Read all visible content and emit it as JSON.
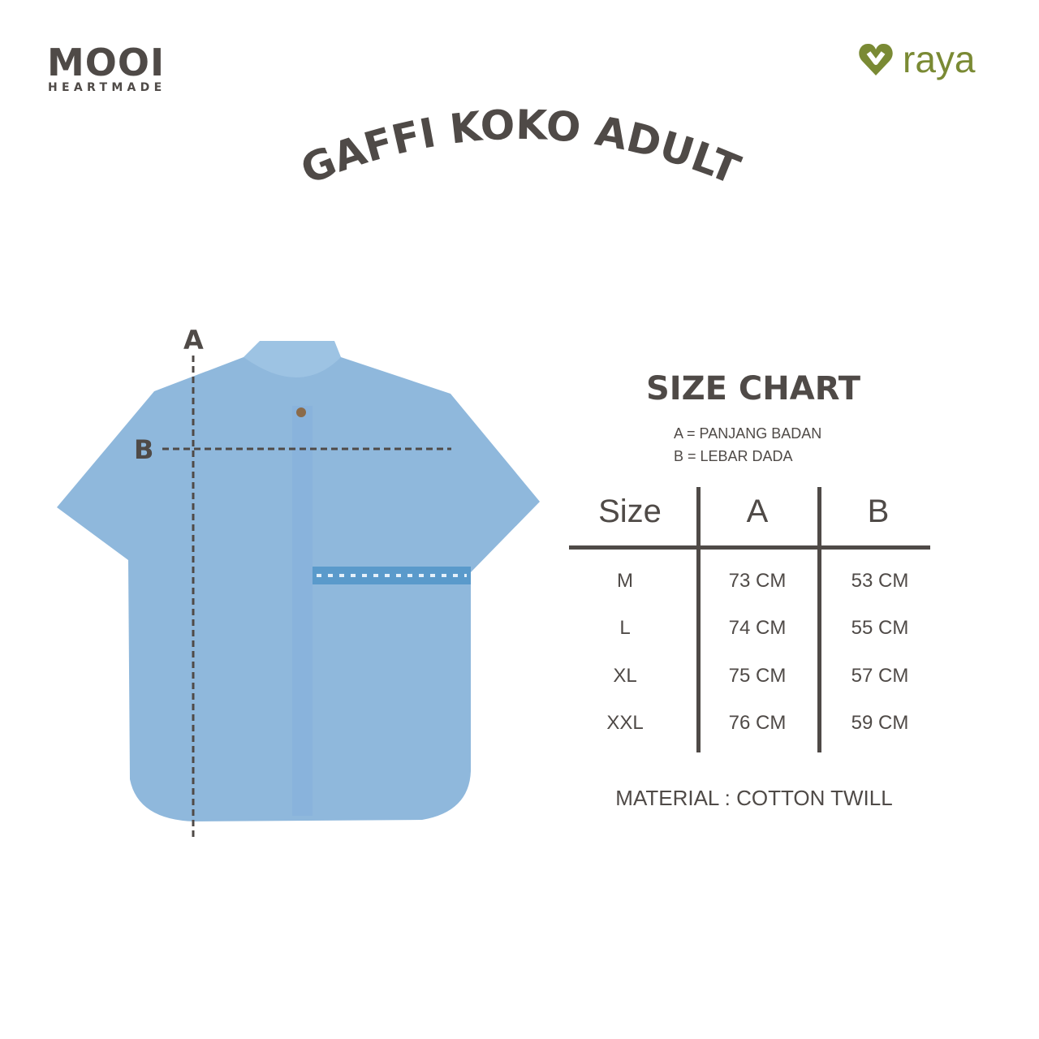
{
  "brand": {
    "logo_main": "MOOI",
    "logo_sub": "HEARTMADE",
    "partner_logo": "raya",
    "partner_color": "#7a8a34",
    "text_color": "#4f4a47"
  },
  "title": "GAFFI KOKO ADULT",
  "diagram": {
    "mark_a": "A",
    "mark_b": "B",
    "shirt_color": "#8fb8dc"
  },
  "size_chart": {
    "title": "SIZE CHART",
    "legend": [
      "A = PANJANG BADAN",
      "B = LEBAR DADA"
    ],
    "headers": [
      "Size",
      "A",
      "B"
    ],
    "rows": [
      [
        "M",
        "73 CM",
        "53 CM"
      ],
      [
        "L",
        "74 CM",
        "55 CM"
      ],
      [
        "XL",
        "75 CM",
        "57 CM"
      ],
      [
        "XXL",
        "76 CM",
        "59 CM"
      ]
    ],
    "material": "MATERIAL : COTTON TWILL"
  }
}
